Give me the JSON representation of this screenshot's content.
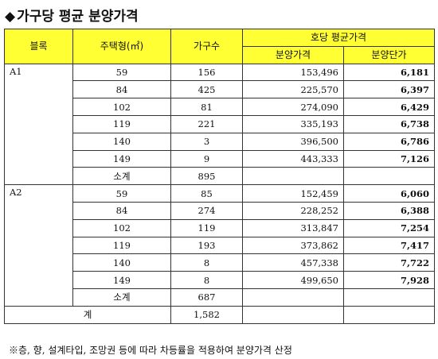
{
  "title": "가구당 평균 분양가격",
  "headers": {
    "block": "블록",
    "type": "주택형(㎡)",
    "households": "가구수",
    "avg_group": "호당 평균가격",
    "price": "분양가격",
    "unit_price": "분양단가"
  },
  "blocks": [
    {
      "name": "A1",
      "rows": [
        {
          "type": "59",
          "households": "156",
          "price": "153,496",
          "unit": "6,181"
        },
        {
          "type": "84",
          "households": "425",
          "price": "225,570",
          "unit": "6,397"
        },
        {
          "type": "102",
          "households": "81",
          "price": "274,090",
          "unit": "6,429"
        },
        {
          "type": "119",
          "households": "221",
          "price": "335,193",
          "unit": "6,738"
        },
        {
          "type": "140",
          "households": "3",
          "price": "396,500",
          "unit": "6,786"
        },
        {
          "type": "149",
          "households": "9",
          "price": "443,333",
          "unit": "7,126"
        }
      ],
      "subtotal_label": "소계",
      "subtotal": "895"
    },
    {
      "name": "A2",
      "rows": [
        {
          "type": "59",
          "households": "85",
          "price": "152,459",
          "unit": "6,060"
        },
        {
          "type": "84",
          "households": "274",
          "price": "228,252",
          "unit": "6,388"
        },
        {
          "type": "102",
          "households": "119",
          "price": "313,847",
          "unit": "7,254"
        },
        {
          "type": "119",
          "households": "193",
          "price": "373,862",
          "unit": "7,417"
        },
        {
          "type": "140",
          "households": "8",
          "price": "457,338",
          "unit": "7,722"
        },
        {
          "type": "149",
          "households": "8",
          "price": "499,650",
          "unit": "7,928"
        }
      ],
      "subtotal_label": "소계",
      "subtotal": "687"
    }
  ],
  "total_label": "계",
  "total": "1,582",
  "note": "※층, 향, 설계타입, 조망권 등에 따라 차등률을 적용하여 분양가격 산정"
}
